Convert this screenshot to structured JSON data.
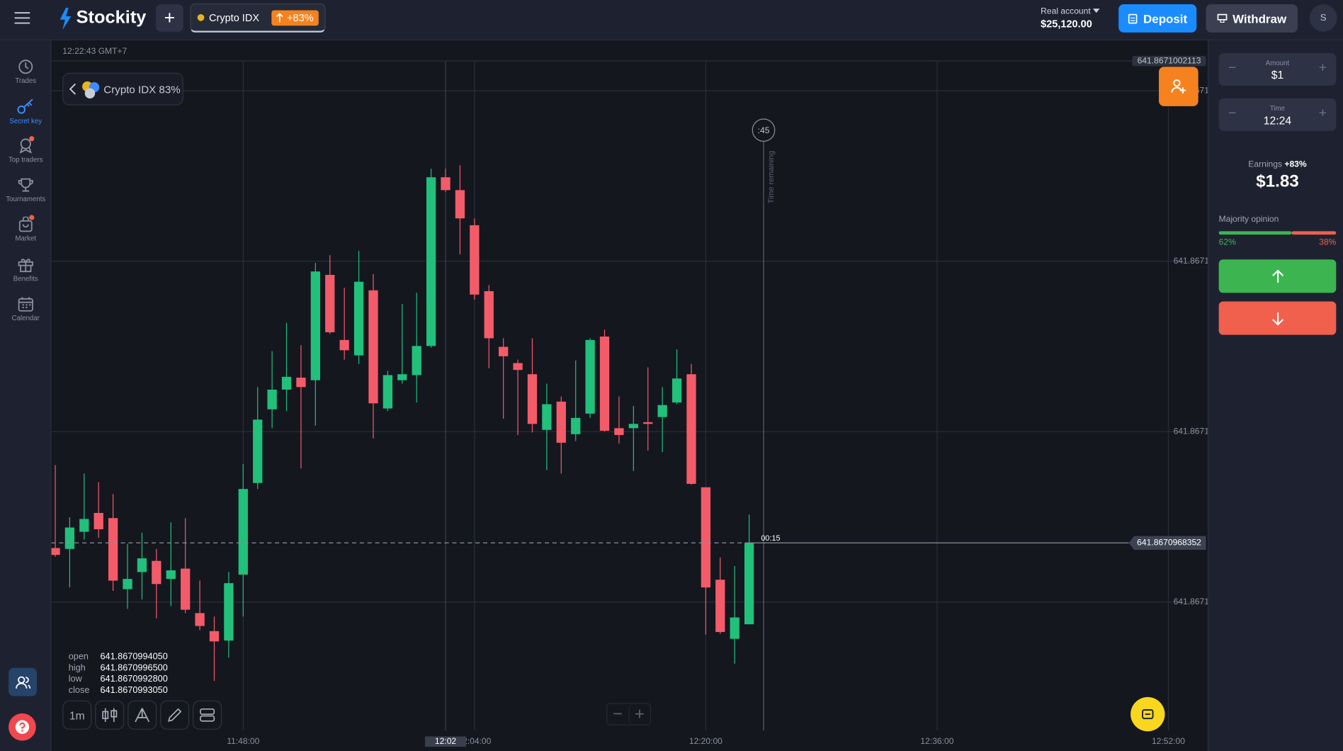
{
  "header": {
    "logo": "Stockity",
    "tab": {
      "name": "Crypto IDX",
      "payout": "+83%"
    },
    "account": {
      "type": "Real account",
      "balance": "$25,120.00"
    },
    "deposit": "Deposit",
    "withdraw": "Withdraw",
    "avatar": "S"
  },
  "sidebar": {
    "items": [
      "Trades",
      "Secret key",
      "Top traders",
      "Tournaments",
      "Market",
      "Benefits",
      "Calendar"
    ]
  },
  "chart_header": {
    "clock": "12:22:43 GMT+7",
    "asset": "Crypto IDX 83%"
  },
  "chart_data": {
    "type": "candlestick",
    "x": [
      "11:35:00",
      "11:36:00",
      "11:37:00",
      "11:38:00",
      "11:39:00",
      "11:40:00",
      "11:41:00",
      "11:42:00",
      "11:43:00",
      "11:44:00",
      "11:45:00",
      "11:46:00",
      "11:47:00",
      "11:48:00",
      "11:49:00",
      "11:50:00",
      "11:51:00",
      "11:52:00",
      "11:53:00",
      "11:54:00",
      "11:55:00",
      "11:56:00",
      "11:57:00",
      "11:58:00",
      "11:59:00",
      "12:00:00",
      "12:01:00",
      "12:02:00",
      "12:03:00",
      "12:04:00",
      "12:05:00",
      "12:06:00",
      "12:07:00",
      "12:08:00",
      "12:09:00",
      "12:10:00",
      "12:11:00",
      "12:12:00",
      "12:13:00",
      "12:14:00",
      "12:15:00",
      "12:16:00",
      "12:17:00",
      "12:18:00",
      "12:19:00",
      "12:20:00",
      "12:21:00",
      "12:22:00",
      "12:23:00"
    ],
    "open": [
      641.867096799,
      641.867096793,
      641.867096913,
      641.867097045,
      641.867097009,
      641.867096511,
      641.867096631,
      641.867096709,
      641.867096583,
      641.867096655,
      641.867096343,
      641.867096217,
      641.867096151,
      641.867096613,
      641.867097255,
      641.867097771,
      641.867097909,
      641.867097993,
      641.867097975,
      641.867098713,
      641.867098257,
      641.867098149,
      641.867098605,
      641.867097777,
      641.867097975,
      641.867098011,
      641.867098215,
      641.867099397,
      641.867099307,
      641.867099061,
      641.867098599,
      641.867098209,
      641.867098095,
      641.867098017,
      641.867097627,
      641.867097825,
      641.867097597,
      641.867097741,
      641.867098281,
      641.867097639,
      641.867097639,
      641.867097681,
      641.867097717,
      641.867097819,
      641.867098017,
      641.867097225,
      641.867096577,
      641.867096163,
      641.867096265
    ],
    "high": [
      641.867097381,
      641.867097015,
      641.867097321,
      641.867097261,
      641.867097177,
      641.867096829,
      641.867096907,
      641.867096793,
      641.867096979,
      641.867097009,
      641.867096571,
      641.867096319,
      641.867096631,
      641.867097387,
      641.867097927,
      641.867098179,
      641.867098377,
      641.867098221,
      641.867098797,
      641.867098851,
      641.867098623,
      641.867098881,
      641.867098719,
      641.867098041,
      641.867098509,
      641.867098587,
      641.867099457,
      641.867099457,
      641.867099481,
      641.867099109,
      641.867098641,
      641.867098269,
      641.867098119,
      641.867098269,
      641.867097951,
      641.867097861,
      641.867098113,
      641.867098269,
      641.867098329,
      641.867097861,
      641.867097795,
      641.867098065,
      641.867097927,
      641.867098191,
      641.867098089,
      641.867097225,
      641.867096733,
      641.867096673,
      641.867097033
    ],
    "low": [
      641.867096739,
      641.867096523,
      641.867096859,
      641.867096871,
      641.867096499,
      641.867096373,
      641.867096439,
      641.867096307,
      641.867096391,
      641.867096343,
      641.867096223,
      641.867095869,
      641.867096031,
      641.867096319,
      641.867097213,
      641.867097639,
      641.867097759,
      641.867097357,
      641.867097657,
      641.867098299,
      641.867098119,
      641.867098089,
      641.867097567,
      641.867097759,
      641.867097951,
      641.867097819,
      641.867098203,
      641.867099295,
      641.867098857,
      641.867098539,
      641.867098059,
      641.867097705,
      641.867097591,
      641.867097609,
      641.867097345,
      641.867097321,
      641.867097549,
      641.867097711,
      641.867097615,
      641.867097531,
      641.867097339,
      641.867097483,
      641.867097471,
      641.867097807,
      641.867097243,
      641.867096193,
      641.867096199,
      641.867095989,
      641.867096265
    ],
    "close": [
      641.867096751,
      641.867096943,
      641.867097003,
      641.867096931,
      641.867096571,
      641.867096583,
      641.867096727,
      641.867096547,
      641.867096643,
      641.867096367,
      641.867096253,
      641.867096145,
      641.867096553,
      641.867097213,
      641.867097699,
      641.867097909,
      641.867097999,
      641.867097927,
      641.867098737,
      641.867098311,
      641.867098185,
      641.867098665,
      641.867097813,
      641.867098011,
      641.867098017,
      641.867098215,
      641.867099397,
      641.867099307,
      641.867099109,
      641.867098575,
      641.867098269,
      641.867098143,
      641.867098047,
      641.867097669,
      641.867097807,
      641.867097537,
      641.867097711,
      641.867098257,
      641.867097621,
      641.867097591,
      641.867097669,
      641.867097669,
      641.867097801,
      641.867097987,
      641.867097249,
      641.867096523,
      641.867096211,
      641.867096313,
      641.867096835
    ],
    "colors": {
      "up": "#21c07b",
      "down": "#f45b69"
    },
    "ylim": [
      641.867095521,
      641.867100351
    ],
    "yticks": [
      {
        "value": 641.867100003,
        "label": "641.8671"
      },
      {
        "value": 641.867098809,
        "label": "641.8671"
      },
      {
        "value": 641.867097615,
        "label": "641.8671"
      },
      {
        "value": 641.867096421,
        "label": "641.8671"
      }
    ],
    "xlim": [
      "11:34:44",
      "12:54:36"
    ],
    "xticks": [
      "11:48:00",
      "12:04:00",
      "12:20:00",
      "12:36:00",
      "12:52:00"
    ],
    "grid": true,
    "current_price": 641.8670968352,
    "top_price": 641.8671002113,
    "crosshair": {
      "x": "12:02:00",
      "label": "12:02"
    },
    "expiry": {
      "x": "12:24:00",
      "countdown": ":45",
      "caption": "Time remaining",
      "timer": "00:15"
    }
  },
  "ohlc": {
    "labels": [
      "open",
      "high",
      "low",
      "close"
    ],
    "values": [
      "641.8670994050",
      "641.8670996500",
      "641.8670992800",
      "641.8670993050"
    ]
  },
  "toolbar": {
    "timeframe": "1m"
  },
  "trade_panel": {
    "amount": {
      "label": "Amount",
      "value": "$1"
    },
    "time": {
      "label": "Time",
      "value": "12:24"
    },
    "earnings": {
      "label": "Earnings",
      "percent": "+83%",
      "value": "$1.83"
    },
    "majority": {
      "title": "Majority opinion",
      "values": [
        62,
        38
      ],
      "value_labels": [
        "62%",
        "38%"
      ],
      "colors": [
        "#3cb550",
        "#f0604d"
      ]
    }
  }
}
